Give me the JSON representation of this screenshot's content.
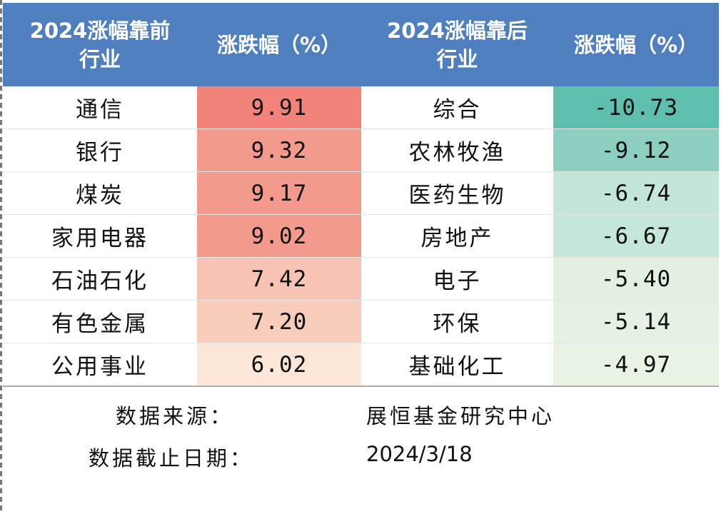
{
  "header": {
    "col1_line1": "2024涨幅靠前",
    "col1_line2": "行业",
    "col2": "涨跌幅（%）",
    "col3_line1": "2024涨幅靠后",
    "col3_line2": "行业",
    "col4": "涨跌幅（%）"
  },
  "rows": [
    {
      "top_industry": "通信",
      "top_change": "9.91",
      "bottom_industry": "综合",
      "bottom_change": "-10.73"
    },
    {
      "top_industry": "银行",
      "top_change": "9.32",
      "bottom_industry": "农林牧渔",
      "bottom_change": "-9.12"
    },
    {
      "top_industry": "煤炭",
      "top_change": "9.17",
      "bottom_industry": "医药生物",
      "bottom_change": "-6.74"
    },
    {
      "top_industry": "家用电器",
      "top_change": "9.02",
      "bottom_industry": "房地产",
      "bottom_change": "-6.67"
    },
    {
      "top_industry": "石油石化",
      "top_change": "7.42",
      "bottom_industry": "电子",
      "bottom_change": "-5.40"
    },
    {
      "top_industry": "有色金属",
      "top_change": "7.20",
      "bottom_industry": "环保",
      "bottom_change": "-5.14"
    },
    {
      "top_industry": "公用事业",
      "top_change": "6.02",
      "bottom_industry": "基础化工",
      "bottom_change": "-4.97"
    }
  ],
  "footer": {
    "source_label": "数据来源：",
    "source_value": "展恒基金研究中心",
    "cutoff_label": "数据截止日期：",
    "cutoff_value": "2024/3/18"
  },
  "colors": {
    "header_bg": "#4f7fbf",
    "top_heat": [
      "#f2827a",
      "#f49a8d",
      "#f49a8d",
      "#f49a8d",
      "#f7c3b4",
      "#f8cbbb",
      "#fbe6d8"
    ],
    "bottom_heat": [
      "#5fbfae",
      "#8ccfc0",
      "#c3e6d8",
      "#c5e7d9",
      "#e2f0e1",
      "#e5f1e2",
      "#e9f3e4"
    ]
  }
}
